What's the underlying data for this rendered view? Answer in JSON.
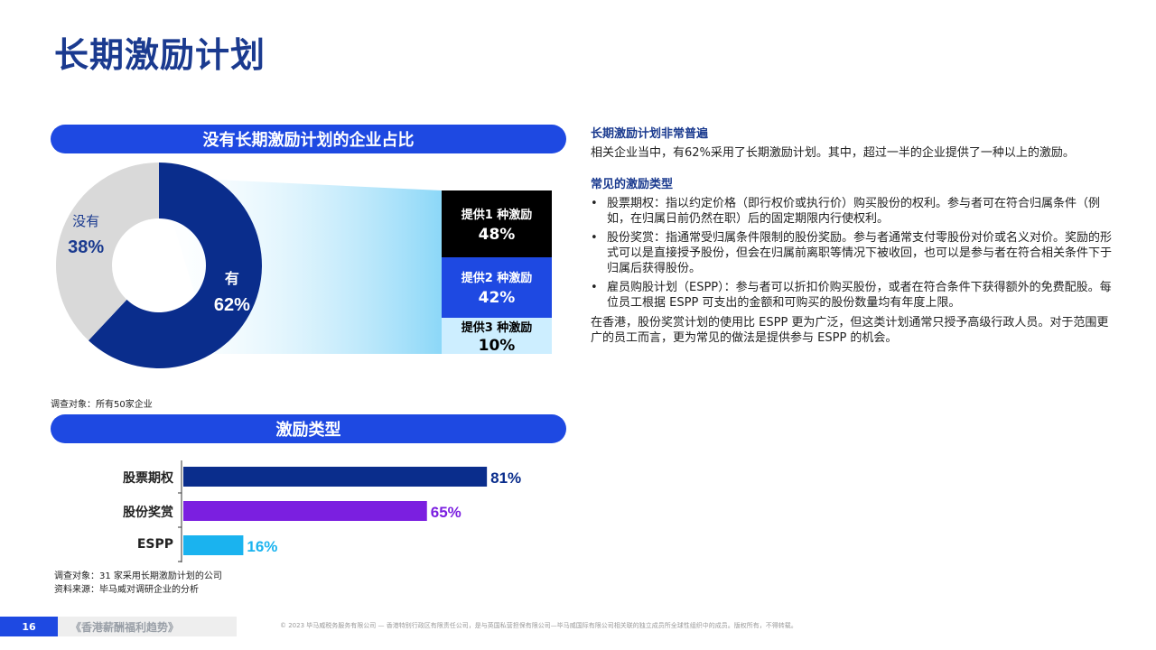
{
  "page": {
    "title": "长期激励计划",
    "page_number": "16",
    "doc_name": "《香港薪酬福利趋势》",
    "copyright": "© 2023 毕马威税务服务有限公司 — 香港特别行政区有限责任公司，是与英国私营担保有限公司—毕马威国际有限公司相关联的独立成员所全球性组织中的成员。版权所有，不得转载。"
  },
  "section1": {
    "pill_title": "没有长期激励计划的企业占比",
    "survey_note": "调查对象：所有50家企业"
  },
  "section2": {
    "pill_title": "激励类型",
    "survey_note": "调查对象：31 家采用长期激励计划的公司",
    "source_note": "资料来源：毕马威对调研企业的分析"
  },
  "chart_data": [
    {
      "type": "pie",
      "categories": [
        "有",
        "没有"
      ],
      "values": [
        62,
        38
      ],
      "value_labels": [
        "62%",
        "38%"
      ],
      "colors": [
        "#0a2d8c",
        "#d9d9d9"
      ],
      "label_colors": [
        "#ffffff",
        "#1a3a8f"
      ]
    },
    {
      "type": "bar",
      "stacked": true,
      "categories": [
        "提供1 种激励",
        "提供2 种激励",
        "提供3 种激励"
      ],
      "values": [
        48,
        42,
        10
      ],
      "value_labels": [
        "48%",
        "42%",
        "10%"
      ],
      "colors": [
        "#000000",
        "#1e49e2",
        "#cdeeff"
      ]
    },
    {
      "type": "bar",
      "orientation": "horizontal",
      "categories": [
        "股票期权",
        "股份奖赏",
        "ESPP"
      ],
      "values": [
        81,
        65,
        16
      ],
      "value_labels": [
        "81%",
        "65%",
        "16%"
      ],
      "colors": [
        "#0a2d8c",
        "#7b1fe0",
        "#1ab3ef"
      ],
      "xlim": [
        0,
        100
      ]
    }
  ],
  "right": {
    "heading1": "长期激励计划非常普遍",
    "para1": "相关企业当中，有62%采用了长期激励计划。其中，超过一半的企业提供了一种以上的激励。",
    "heading2": "常见的激励类型",
    "bullet_symbol": "•",
    "bullets": [
      "股票期权：指以约定价格（即行权价或执行价）购买股份的权利。参与者可在符合归属条件（例如，在归属日前仍然在职）后的固定期限内行使权利。",
      "股份奖赏：指通常受归属条件限制的股份奖励。参与者通常支付零股份对价或名义对价。奖励的形式可以是直接授予股份，但会在归属前离职等情况下被收回，也可以是参与者在符合相关条件下于归属后获得股份。",
      "雇员购股计划（ESPP）：参与者可以折扣价购买股份，或者在符合条件下获得额外的免费配股。每位员工根据 ESPP 可支出的金额和可购买的股份数量均有年度上限。"
    ],
    "para2": "在香港，股份奖赏计划的使用比 ESPP 更为广泛，但这类计划通常只授予高级行政人员。对于范围更广的员工而言，更为常见的做法是提供参与 ESPP 的机会。"
  }
}
